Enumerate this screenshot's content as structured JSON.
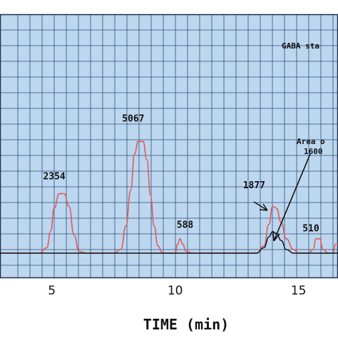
{
  "chart_data": {
    "type": "line",
    "xlabel": "TIME (min)",
    "ylabel": "",
    "x_ticks": [
      5,
      10,
      15
    ],
    "xlim": [
      2.9,
      16.6
    ],
    "ylim": [
      0,
      1
    ],
    "grid": true,
    "background": "#bdd7ee",
    "grid_color": "#2f4f7f",
    "annotations": {
      "standard": "GABA sta",
      "area_line1": "Area o",
      "area_line2": "1600"
    },
    "peak_labels": [
      {
        "text": "2354",
        "x": 5.1,
        "y": 0.41
      },
      {
        "text": "5067",
        "x": 8.3,
        "y": 0.73
      },
      {
        "text": "588",
        "x": 10.4,
        "y": 0.14
      },
      {
        "text": "1877",
        "x": 13.2,
        "y": 0.36
      },
      {
        "text": "510",
        "x": 15.5,
        "y": 0.12
      }
    ],
    "series": [
      {
        "color": "#e05a5a",
        "x": [
          2.9,
          4.5,
          4.8,
          4.95,
          5.1,
          5.3,
          5.5,
          5.7,
          5.9,
          6.1,
          6.4,
          7.5,
          7.8,
          8.0,
          8.2,
          8.35,
          8.5,
          8.7,
          8.85,
          9.0,
          9.15,
          9.3,
          9.5,
          10.0,
          10.1,
          10.2,
          10.3,
          10.45,
          10.7,
          13.3,
          13.6,
          13.8,
          13.95,
          14.1,
          14.3,
          14.5,
          14.8,
          15.0,
          15.4,
          15.6,
          15.7,
          15.85,
          16.0,
          16.2,
          16.4,
          16.5,
          16.6
        ],
        "y": [
          0.0,
          0.0,
          0.03,
          0.12,
          0.25,
          0.33,
          0.33,
          0.26,
          0.1,
          0.01,
          0.0,
          0.0,
          0.02,
          0.15,
          0.35,
          0.55,
          0.62,
          0.62,
          0.52,
          0.32,
          0.15,
          0.04,
          0.0,
          0.0,
          0.05,
          0.08,
          0.05,
          0.01,
          0.0,
          0.0,
          0.04,
          0.16,
          0.26,
          0.25,
          0.17,
          0.08,
          0.02,
          0.0,
          0.0,
          0.02,
          0.08,
          0.08,
          0.02,
          0.0,
          0.0,
          0.05,
          0.05
        ]
      },
      {
        "color": "#111111",
        "x": [
          2.9,
          5.0,
          10.0,
          13.3,
          13.6,
          13.8,
          13.95,
          14.1,
          14.3,
          14.5,
          14.8,
          15.0,
          16.0,
          16.6
        ],
        "y": [
          0.0,
          0.0,
          0.0,
          0.0,
          0.03,
          0.09,
          0.12,
          0.11,
          0.07,
          0.02,
          0.0,
          0.0,
          0.0,
          0.0
        ]
      }
    ]
  }
}
